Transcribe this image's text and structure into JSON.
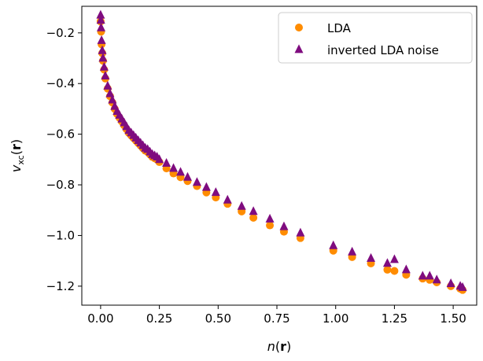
{
  "chart_data": {
    "type": "scatter",
    "xlabel": "n(r)",
    "ylabel": "v_xc(r)",
    "xlim": [
      -0.08,
      1.6
    ],
    "ylim": [
      -1.275,
      -0.095
    ],
    "xticks": [
      0.0,
      0.25,
      0.5,
      0.75,
      1.0,
      1.25,
      1.5
    ],
    "xtick_labels": [
      "0.00",
      "0.25",
      "0.50",
      "0.75",
      "1.00",
      "1.25",
      "1.50"
    ],
    "yticks": [
      -0.2,
      -0.4,
      -0.6,
      -0.8,
      -1.0,
      -1.2
    ],
    "ytick_labels": [
      "−0.2",
      "−0.4",
      "−0.6",
      "−0.8",
      "−1.0",
      "−1.2"
    ],
    "grid": false,
    "legend_position": "top-right",
    "series": [
      {
        "name": "LDA",
        "marker": "circle",
        "color": "#ff8c00",
        "x": [
          0.0,
          0.002,
          0.004,
          0.007,
          0.01,
          0.015,
          0.02,
          0.03,
          0.04,
          0.05,
          0.06,
          0.07,
          0.08,
          0.09,
          0.1,
          0.11,
          0.12,
          0.13,
          0.14,
          0.15,
          0.16,
          0.17,
          0.18,
          0.19,
          0.2,
          0.21,
          0.22,
          0.23,
          0.24,
          0.25,
          0.28,
          0.31,
          0.34,
          0.37,
          0.41,
          0.45,
          0.49,
          0.54,
          0.6,
          0.65,
          0.72,
          0.78,
          0.85,
          0.99,
          1.07,
          1.15,
          1.22,
          1.25,
          1.3,
          1.37,
          1.4,
          1.43,
          1.49,
          1.53,
          1.54
        ],
        "y": [
          -0.155,
          -0.195,
          -0.245,
          -0.28,
          -0.31,
          -0.345,
          -0.38,
          -0.42,
          -0.45,
          -0.475,
          -0.5,
          -0.52,
          -0.535,
          -0.55,
          -0.565,
          -0.58,
          -0.595,
          -0.605,
          -0.615,
          -0.625,
          -0.635,
          -0.645,
          -0.655,
          -0.665,
          -0.67,
          -0.68,
          -0.69,
          -0.695,
          -0.7,
          -0.71,
          -0.735,
          -0.755,
          -0.77,
          -0.785,
          -0.805,
          -0.83,
          -0.85,
          -0.875,
          -0.905,
          -0.93,
          -0.96,
          -0.985,
          -1.01,
          -1.06,
          -1.085,
          -1.11,
          -1.135,
          -1.14,
          -1.155,
          -1.17,
          -1.175,
          -1.185,
          -1.2,
          -1.21,
          -1.215
        ]
      },
      {
        "name": "inverted LDA noise",
        "marker": "triangle",
        "color": "#7f0c7f",
        "x": [
          0.0,
          0.001,
          0.002,
          0.004,
          0.007,
          0.01,
          0.015,
          0.02,
          0.03,
          0.04,
          0.05,
          0.06,
          0.07,
          0.08,
          0.09,
          0.1,
          0.11,
          0.12,
          0.13,
          0.14,
          0.15,
          0.16,
          0.17,
          0.18,
          0.19,
          0.2,
          0.21,
          0.22,
          0.23,
          0.24,
          0.25,
          0.28,
          0.31,
          0.34,
          0.37,
          0.41,
          0.45,
          0.49,
          0.54,
          0.6,
          0.65,
          0.72,
          0.78,
          0.85,
          0.99,
          1.07,
          1.15,
          1.22,
          1.25,
          1.3,
          1.37,
          1.4,
          1.43,
          1.49,
          1.53,
          1.54
        ],
        "y": [
          -0.13,
          -0.15,
          -0.18,
          -0.23,
          -0.27,
          -0.3,
          -0.335,
          -0.37,
          -0.41,
          -0.44,
          -0.465,
          -0.49,
          -0.51,
          -0.525,
          -0.54,
          -0.555,
          -0.57,
          -0.585,
          -0.595,
          -0.605,
          -0.615,
          -0.625,
          -0.635,
          -0.645,
          -0.655,
          -0.66,
          -0.67,
          -0.68,
          -0.685,
          -0.69,
          -0.7,
          -0.715,
          -0.735,
          -0.75,
          -0.77,
          -0.79,
          -0.81,
          -0.83,
          -0.86,
          -0.885,
          -0.905,
          -0.935,
          -0.965,
          -0.99,
          -1.04,
          -1.065,
          -1.09,
          -1.11,
          -1.095,
          -1.135,
          -1.16,
          -1.16,
          -1.175,
          -1.19,
          -1.2,
          -1.205
        ]
      }
    ]
  }
}
